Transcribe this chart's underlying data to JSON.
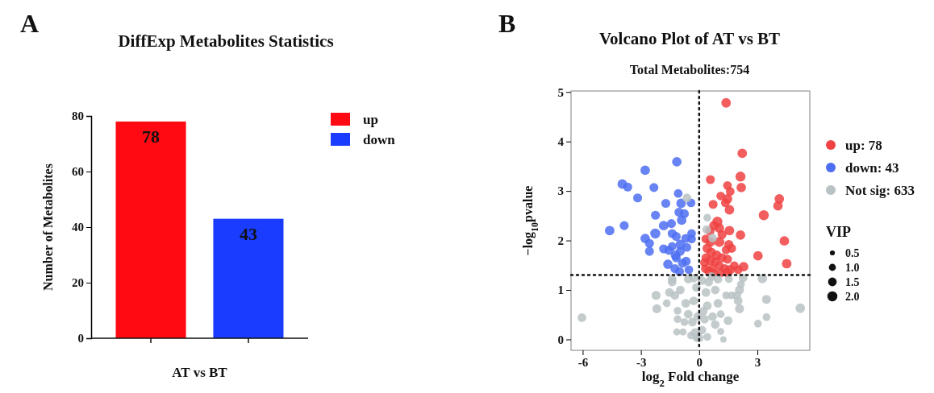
{
  "chart_data": [
    {
      "type": "bar",
      "title": "DiffExp Metabolites Statistics",
      "ylabel": "Number of Metabolites",
      "xlabel": "AT vs BT",
      "annotations": [
        "A"
      ],
      "categories": [
        null
      ],
      "series": [
        {
          "name": "up",
          "color": "#ff0a12",
          "values": [
            78
          ]
        },
        {
          "name": "down",
          "color": "#1a3cff",
          "values": [
            43
          ]
        }
      ],
      "ylim": [
        0,
        80
      ],
      "yticks": [
        0,
        20,
        40,
        60,
        80
      ],
      "data_labels": true,
      "legend": "top right"
    },
    {
      "type": "bubble",
      "title": "Volcano Plot of AT vs BT",
      "subtitle": "Total Metabolites:754",
      "xlabel": "log$_{2}$ Fold change",
      "ylabel": "−log$_{10}$pvalue",
      "legend_title": "VIP",
      "annotations": [
        "B"
      ],
      "series": [
        {
          "name": "up: 78",
          "color": "#f04242",
          "x": [
            1.39,
            2.22,
            2.13,
            2.17,
            0.58,
            1.46,
            1.6,
            1.11,
            1.46,
            1.35,
            0.72,
            1.56,
            4.13,
            4.06,
            3.33,
            0.94,
            0.76,
            1.04,
            0.56,
            1.56,
            1.18,
            2.13,
            4.39,
            0.35,
            0.58,
            1.04,
            1.53,
            1.67,
            1.39,
            0.42,
            0.62,
            3.03,
            0.9,
            0.35,
            1.18,
            1.46,
            0.56,
            0.83,
            0.28,
            4.51,
            1.04,
            1.81,
            2.29,
            0.69,
            1.32,
            1.6,
            2.01,
            0.49,
            1.11,
            1.46,
            0.76,
            0.32
          ],
          "values": [
            4.78,
            3.76,
            3.29,
            3.07,
            3.23,
            3.11,
            2.99,
            2.9,
            2.84,
            2.76,
            2.73,
            2.62,
            2.84,
            2.7,
            2.51,
            2.38,
            2.3,
            2.25,
            2.19,
            2.2,
            2.12,
            2.11,
            1.99,
            2.03,
            1.97,
            1.97,
            1.92,
            1.84,
            1.81,
            1.84,
            1.76,
            1.69,
            1.7,
            1.65,
            1.65,
            1.62,
            1.59,
            1.57,
            1.55,
            1.53,
            1.49,
            1.49,
            1.47,
            1.43,
            1.43,
            1.41,
            1.41,
            1.38,
            1.35,
            1.35,
            1.34,
            1.43
          ],
          "sizes": [
            1.8,
            1.8,
            2,
            1.8,
            1.6,
            1.5,
            1.5,
            1.5,
            1.8,
            1.5,
            1.6,
            1.8,
            1.8,
            1.8,
            2,
            2,
            1.8,
            1.8,
            1.6,
            1.8,
            1.6,
            1.8,
            1.8,
            1.6,
            1.8,
            2,
            1.6,
            1.6,
            1.5,
            1.8,
            1.8,
            1.8,
            1.8,
            1.6,
            1.6,
            1.6,
            1.8,
            1.6,
            1.6,
            1.8,
            1.5,
            1.5,
            1.8,
            1.6,
            1.6,
            1.8,
            1.5,
            1.6,
            1.6,
            1.8,
            1.5,
            1.5
          ]
        },
        {
          "name": "down: 43",
          "color": "#4d6ef2",
          "x": [
            -1.15,
            -2.78,
            -3.96,
            -3.68,
            -2.33,
            -3.17,
            -1.08,
            -1.72,
            -0.93,
            -0.42,
            -1.04,
            -0.76,
            -2.25,
            -0.9,
            -1.43,
            -1.83,
            -3.86,
            -4.61,
            -2.26,
            -1.39,
            -0.39,
            -1.18,
            -2.78,
            -0.69,
            -0.39,
            -2.56,
            -0.97,
            -1.39,
            -0.63,
            -2.56,
            -1.83,
            -1.56,
            -0.97,
            -1.22,
            -1.18,
            -0.67,
            -0.86,
            -1.61,
            -1.25,
            -0.53,
            -1.01
          ],
          "values": [
            3.59,
            3.42,
            3.14,
            3.08,
            3.07,
            2.86,
            2.95,
            2.75,
            2.75,
            2.76,
            2.57,
            2.54,
            2.51,
            2.41,
            2.34,
            2.3,
            2.3,
            2.2,
            2.14,
            2.14,
            2.14,
            2.08,
            2.04,
            2.04,
            2.03,
            1.94,
            1.92,
            1.88,
            1.86,
            1.78,
            1.83,
            1.8,
            1.78,
            1.7,
            1.65,
            1.58,
            1.54,
            1.52,
            1.43,
            1.41,
            1.37
          ],
          "sizes": [
            1.8,
            1.8,
            1.8,
            1.6,
            1.6,
            1.6,
            1.5,
            1.6,
            1.8,
            1.5,
            1.6,
            1.6,
            1.6,
            1.8,
            1.6,
            1.8,
            1.6,
            1.8,
            2,
            1.6,
            1.5,
            1.6,
            1.8,
            1.6,
            1.5,
            1.6,
            1.8,
            1.5,
            1.5,
            1.6,
            1.6,
            1.6,
            1.6,
            1.8,
            1.6,
            1.6,
            1.6,
            1.8,
            1.6,
            1.5,
            1.6
          ]
        },
        {
          "name": "Not sig: 633",
          "color": "#b8c2c4",
          "x": [
            -6.04,
            -0.63,
            0.42,
            0.39,
            0.69,
            3.26,
            2.26,
            3.47,
            5.21,
            3.47,
            3.03,
            2.08,
            1.94,
            2.08,
            1.49,
            1.39,
            -2.22,
            -2.18,
            -1.67,
            -1.11,
            -1.15,
            -0.83,
            1.25,
            1.11,
            -1.39,
            -1.53,
            -1.25,
            -0.56,
            -0.97,
            -0.69,
            -0.56,
            -0.35,
            -0.21,
            0,
            0.14,
            0.28,
            0.42,
            0.35,
            0.49,
            0.63,
            0.83,
            0.97,
            0.69,
            0.83,
            -0.14,
            -0.42,
            -0.76,
            -1.11,
            -0.28,
            -0.14,
            0.14,
            0.97,
            1.53,
            1.67,
            1.11,
            -0.07,
            0.21,
            -0.28,
            -1.39,
            2.15,
            2.01,
            0.42
          ],
          "values": [
            0.44,
            2.86,
            2.46,
            2.22,
            2.05,
            1.23,
            1.24,
            0.81,
            0.63,
            0.45,
            0.32,
            1.0,
            0.89,
            0.62,
            0.38,
            0.89,
            0.89,
            0.62,
            0.73,
            0.58,
            0.15,
            0.15,
            0.0,
            0.16,
            1.16,
            0.95,
            0.89,
            1.22,
            1.0,
            0.73,
            0.51,
            0.35,
            0.14,
            0.03,
            0.19,
            0.41,
            0.68,
            0.95,
            1.16,
            1.27,
            1.0,
            0.73,
            0.46,
            0.3,
            0.03,
            0.08,
            0.35,
            0.41,
            0.78,
            1.05,
            1.19,
            1.22,
            1.22,
            0.89,
            0.51,
            0.46,
            0.57,
            1.24,
            1.22,
            1.11,
            0.78,
            0.05
          ],
          "sizes": [
            1.5,
            1.5,
            1.2,
            1.5,
            1.5,
            1.8,
            1.5,
            1.6,
            1.8,
            1.2,
            1.2,
            1.6,
            1.5,
            1.6,
            1.5,
            1.2,
            1.6,
            1.6,
            1.2,
            1.2,
            1.0,
            1.0,
            0.8,
            1.0,
            1.5,
            1.5,
            1.5,
            1.5,
            1.5,
            1.5,
            1.5,
            1.5,
            1.5,
            1.5,
            1.5,
            1.5,
            1.5,
            1.5,
            1.5,
            1.5,
            1.5,
            1.5,
            1.5,
            1.5,
            1.2,
            1.2,
            1.2,
            1.2,
            1.5,
            1.5,
            1.5,
            1.5,
            1.2,
            1.2,
            1.2,
            1.5,
            1.5,
            1.5,
            1.5,
            1.2,
            1.5,
            1.2
          ]
        }
      ],
      "size_legend": [
        0.5,
        {
          "value": 1,
          "label": "1.0"
        },
        1.5,
        {
          "value": 2,
          "label": "2.0"
        }
      ],
      "xlim": [
        -6.6,
        5.7
      ],
      "ylim": [
        -0.22,
        5.02
      ],
      "xticks": [
        -6,
        -3,
        0,
        3
      ],
      "yticks": [
        0,
        1,
        2,
        3,
        4,
        5
      ],
      "ref_lines": [
        {
          "axis": "x",
          "value": 0,
          "line_style": "dotted"
        },
        {
          "axis": "y",
          "value": 1.3,
          "line_style": "dotted"
        }
      ],
      "legend": "right"
    }
  ]
}
